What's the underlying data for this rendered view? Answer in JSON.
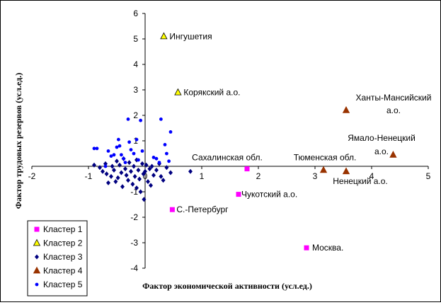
{
  "chart_data": {
    "type": "scatter",
    "xlabel": "Фактор экономической активности (усл.ед.)",
    "ylabel": "Фактор трудовых резервов (усл.ед.)",
    "xlim": [
      -2,
      5
    ],
    "ylim": [
      -4,
      6
    ],
    "x_ticks": [
      "-2",
      "-1",
      "0",
      "1",
      "2",
      "3",
      "4",
      "5"
    ],
    "y_ticks": [
      "-4",
      "-3",
      "-2",
      "-1",
      "0",
      "1",
      "2",
      "3",
      "4",
      "5",
      "6"
    ],
    "grid": false,
    "legend_position": "bottom-left",
    "series": [
      {
        "name": "Кластер 1",
        "marker": "square",
        "color": "#ff00ff",
        "points": [
          {
            "x": 1.8,
            "y": -0.1,
            "label": "Сахалинская обл."
          },
          {
            "x": 1.65,
            "y": -1.1,
            "label": "Чукотский а.о."
          },
          {
            "x": 0.48,
            "y": -1.7,
            "label": "С.-Петербург"
          },
          {
            "x": 2.85,
            "y": -3.2,
            "label": "Москва."
          }
        ]
      },
      {
        "name": "Кластер 2",
        "marker": "triangle",
        "color": "#ffff00",
        "points": [
          {
            "x": 0.33,
            "y": 5.1,
            "label": "Ингушетия"
          },
          {
            "x": 0.58,
            "y": 2.9,
            "label": "Корякский а.о."
          }
        ]
      },
      {
        "name": "Кластер 3",
        "marker": "diamond",
        "color": "#000080",
        "points": [
          {
            "x": -0.8,
            "y": -0.05
          },
          {
            "x": -0.75,
            "y": -0.2
          },
          {
            "x": -0.7,
            "y": 0.1
          },
          {
            "x": -0.68,
            "y": -0.3
          },
          {
            "x": -0.6,
            "y": -0.4
          },
          {
            "x": -0.58,
            "y": 0.0
          },
          {
            "x": -0.55,
            "y": -0.15
          },
          {
            "x": -0.52,
            "y": -0.6
          },
          {
            "x": -0.5,
            "y": 0.2
          },
          {
            "x": -0.48,
            "y": -0.45
          },
          {
            "x": -0.45,
            "y": 0.05
          },
          {
            "x": -0.42,
            "y": -0.25
          },
          {
            "x": -0.4,
            "y": -0.8
          },
          {
            "x": -0.38,
            "y": 0.3
          },
          {
            "x": -0.35,
            "y": -0.1
          },
          {
            "x": -0.33,
            "y": -0.35
          },
          {
            "x": -0.3,
            "y": -0.55
          },
          {
            "x": -0.28,
            "y": 0.15
          },
          {
            "x": -0.25,
            "y": -0.2
          },
          {
            "x": -0.22,
            "y": -0.7
          },
          {
            "x": -0.2,
            "y": 0.0
          },
          {
            "x": -0.18,
            "y": -0.4
          },
          {
            "x": -0.15,
            "y": 0.25
          },
          {
            "x": -0.12,
            "y": -0.15
          },
          {
            "x": -0.1,
            "y": -0.5
          },
          {
            "x": -0.08,
            "y": -1.0
          },
          {
            "x": -0.05,
            "y": 0.1
          },
          {
            "x": -0.03,
            "y": -0.3
          },
          {
            "x": 0.0,
            "y": -0.2
          },
          {
            "x": 0.02,
            "y": 0.05
          },
          {
            "x": 0.05,
            "y": -0.6
          },
          {
            "x": -0.02,
            "y": -1.3
          },
          {
            "x": 0.08,
            "y": -0.1
          },
          {
            "x": 0.12,
            "y": 0.0
          },
          {
            "x": 0.15,
            "y": -0.35
          },
          {
            "x": 0.2,
            "y": -0.15
          },
          {
            "x": 0.25,
            "y": 0.1
          },
          {
            "x": 0.28,
            "y": -0.4
          },
          {
            "x": 0.32,
            "y": -0.55
          },
          {
            "x": 0.38,
            "y": -0.05
          },
          {
            "x": 0.45,
            "y": -0.25
          },
          {
            "x": 0.8,
            "y": -0.2
          },
          {
            "x": -0.9,
            "y": 0.05
          },
          {
            "x": -0.65,
            "y": -0.65
          },
          {
            "x": -0.15,
            "y": -0.85
          },
          {
            "x": 0.1,
            "y": -0.75
          }
        ]
      },
      {
        "name": "Кластер 4",
        "marker": "triangle",
        "color": "#993300",
        "points": [
          {
            "x": 3.55,
            "y": 2.2,
            "label": "Ханты-Мансийский а.о."
          },
          {
            "x": 4.38,
            "y": 0.45,
            "label": "Ямало-Ненецкий а.о."
          },
          {
            "x": 3.15,
            "y": -0.15,
            "label": "Тюменская обл."
          },
          {
            "x": 3.55,
            "y": -0.2,
            "label": "Ненецкий а.о."
          }
        ]
      },
      {
        "name": "Кластер 5",
        "marker": "circle",
        "color": "#0000ff",
        "points": [
          {
            "x": -0.9,
            "y": 0.7
          },
          {
            "x": -0.85,
            "y": 0.7
          },
          {
            "x": -0.65,
            "y": 0.6
          },
          {
            "x": -0.6,
            "y": 0.4
          },
          {
            "x": -0.55,
            "y": 0.45
          },
          {
            "x": -0.5,
            "y": 0.75
          },
          {
            "x": -0.47,
            "y": 1.05
          },
          {
            "x": -0.45,
            "y": 0.8
          },
          {
            "x": -0.42,
            "y": 0.45
          },
          {
            "x": -0.38,
            "y": 0.3
          },
          {
            "x": -0.35,
            "y": 0.15
          },
          {
            "x": -0.3,
            "y": 1.85
          },
          {
            "x": -0.28,
            "y": 0.95
          },
          {
            "x": -0.2,
            "y": 0.5
          },
          {
            "x": -0.15,
            "y": 1.05
          },
          {
            "x": -0.12,
            "y": 0.25
          },
          {
            "x": -0.08,
            "y": 1.8
          },
          {
            "x": 0.15,
            "y": 0.35
          },
          {
            "x": 0.2,
            "y": 0.3
          },
          {
            "x": 0.25,
            "y": 0.15
          },
          {
            "x": 0.28,
            "y": 1.85
          },
          {
            "x": 0.35,
            "y": 0.85
          },
          {
            "x": 0.38,
            "y": 0.5
          },
          {
            "x": 0.45,
            "y": 1.35
          },
          {
            "x": 0.42,
            "y": 0.2
          },
          {
            "x": -0.05,
            "y": 0.6
          },
          {
            "x": -0.7,
            "y": 0.0
          },
          {
            "x": -0.25,
            "y": 0.65
          }
        ]
      }
    ]
  }
}
